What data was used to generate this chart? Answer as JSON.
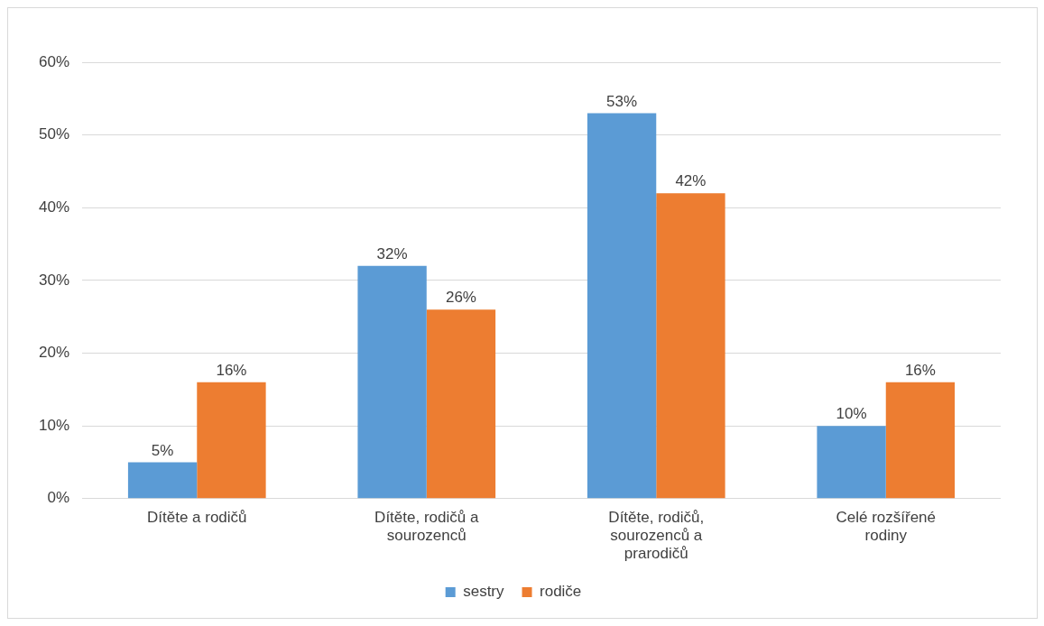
{
  "chart_data": {
    "type": "bar",
    "categories": [
      "Dítěte a rodičů",
      "Dítěte, rodičů a sourozenců",
      "Dítěte, rodičů, sourozenců a prarodičů",
      "Celé rozšířené rodiny"
    ],
    "series": [
      {
        "name": "sestry",
        "color": "#5b9bd5",
        "values": [
          5,
          32,
          53,
          10
        ],
        "value_labels": [
          "5%",
          "32%",
          "53%",
          "10%"
        ]
      },
      {
        "name": "rodiče",
        "color": "#ed7d31",
        "values": [
          16,
          26,
          42,
          16
        ],
        "value_labels": [
          "16%",
          "26%",
          "42%",
          "16%"
        ]
      }
    ],
    "ylim": [
      0,
      60
    ],
    "yticks": [
      {
        "value": 0,
        "label": "0%"
      },
      {
        "value": 10,
        "label": "10%"
      },
      {
        "value": 20,
        "label": "20%"
      },
      {
        "value": 30,
        "label": "30%"
      },
      {
        "value": 40,
        "label": "40%"
      },
      {
        "value": 50,
        "label": "50%"
      },
      {
        "value": 60,
        "label": "60%"
      }
    ],
    "grid": "y",
    "legend": "bottom"
  }
}
